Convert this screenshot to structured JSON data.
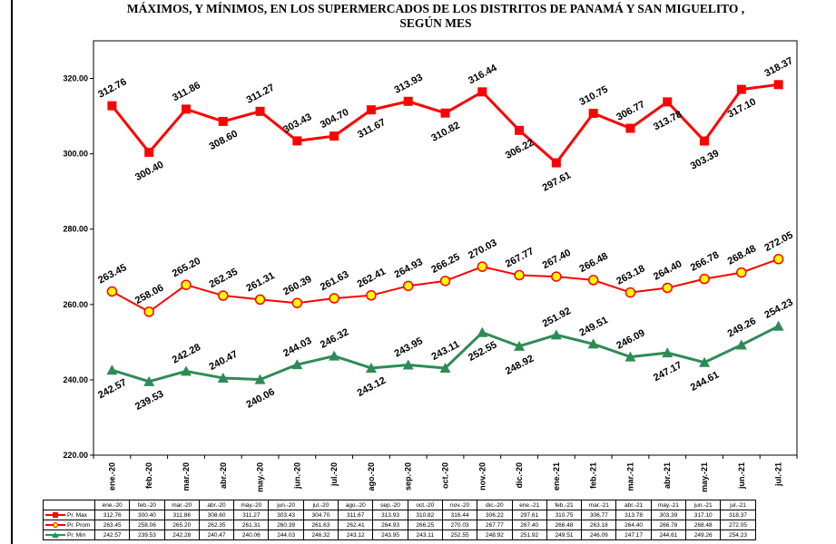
{
  "title": "MÁXIMOS, Y MÍNIMOS, EN LOS SUPERMERCADOS DE LOS DISTRITOS DE PANAMÁ Y SAN MIGUELITO , SEGÚN MES",
  "colors": {
    "max": "#ff0000",
    "prom_line": "#ff0000",
    "prom_fill": "#ffff00",
    "min": "#2e8b57"
  },
  "chart_data": {
    "type": "line",
    "title": "MÁXIMOS, Y MÍNIMOS, EN LOS SUPERMERCADOS DE LOS DISTRITOS DE PANAMÁ Y SAN MIGUELITO , SEGÚN MES",
    "categories": [
      "ene.-20",
      "feb.-20",
      "mar.-20",
      "abr.-20",
      "may.-20",
      "jun.-20",
      "jul.-20",
      "ago.-20",
      "sep.-20",
      "oct.-20",
      "nov.-20",
      "dic.-20",
      "ene.-21",
      "feb.-21",
      "mar.-21",
      "abr.-21",
      "may.-21",
      "jun.-21",
      "jul.-21"
    ],
    "table_categories": [
      "ene.-20",
      "feb.-20",
      "mar.-20",
      "abr.-20",
      "may.-20",
      "jun.-20",
      "jul.-20",
      "ago.-20",
      "sep.-20",
      "oct.-20",
      "nov.-20",
      "dic.-20",
      "ene.-21",
      "feb.-21",
      "mar.-21",
      "abr.-21",
      "may.-21",
      "jun.-21",
      "jul.-21"
    ],
    "y_ticks": [
      "220.00",
      "240.00",
      "260.00",
      "280.00",
      "300.00",
      "320.00"
    ],
    "ylim": [
      220,
      330
    ],
    "grid": false,
    "legend": "data-table",
    "series": [
      {
        "name": "Pr. Max",
        "marker": "square",
        "color": "#ff0000",
        "values": [
          312.76,
          300.4,
          311.86,
          308.6,
          311.27,
          303.43,
          304.7,
          311.67,
          313.93,
          310.82,
          316.44,
          306.22,
          297.61,
          310.75,
          306.77,
          313.78,
          303.39,
          317.1,
          318.37
        ],
        "labels": [
          "312.76",
          "300.40",
          "311.86",
          "308.60",
          "311.27",
          "303.43",
          "304.70",
          "311.67",
          "313.93",
          "310.82",
          "316.44",
          "306.22",
          "297.61",
          "310.75",
          "306.77",
          "313.78",
          "303.39",
          "317.10",
          "318.37"
        ]
      },
      {
        "name": "Pr. Prom",
        "marker": "circle",
        "color": "#ff0000",
        "values": [
          263.45,
          258.06,
          265.2,
          262.35,
          261.31,
          260.39,
          261.63,
          262.41,
          264.93,
          266.25,
          270.03,
          267.77,
          267.4,
          266.48,
          263.18,
          264.4,
          266.78,
          268.48,
          272.05
        ],
        "labels": [
          "263.45",
          "258.06",
          "265.20",
          "262.35",
          "261.31",
          "260.39",
          "261.63",
          "262.41",
          "264.93",
          "266.25",
          "270.03",
          "267.77",
          "267.40",
          "266.48",
          "263.18",
          "264.40",
          "266.78",
          "268.48",
          "272.05"
        ]
      },
      {
        "name": "Pr. Min",
        "marker": "triangle",
        "color": "#2e8b57",
        "values": [
          242.57,
          239.53,
          242.28,
          240.47,
          240.06,
          244.03,
          246.32,
          243.12,
          243.95,
          243.11,
          252.55,
          248.92,
          251.92,
          249.51,
          246.09,
          247.17,
          244.61,
          249.26,
          254.23
        ],
        "labels": [
          "242.57",
          "239.53",
          "242.28",
          "240.47",
          "240.06",
          "244.03",
          "246.32",
          "243.12",
          "243.95",
          "243.11",
          "252.55",
          "248.92",
          "251.92",
          "249.51",
          "246.09",
          "247.17",
          "244.61",
          "249.26",
          "254.23"
        ]
      }
    ]
  }
}
